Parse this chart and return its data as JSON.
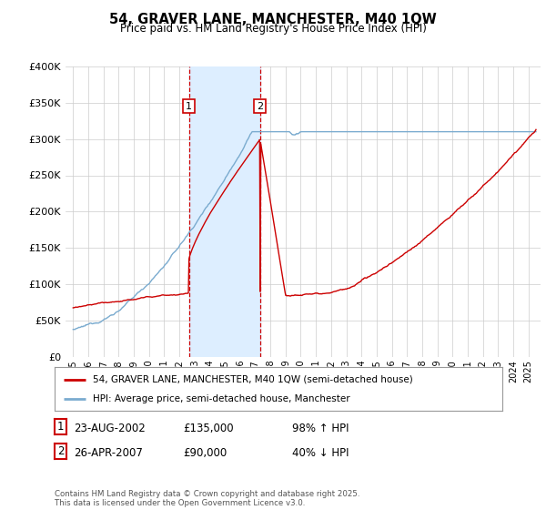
{
  "title": "54, GRAVER LANE, MANCHESTER, M40 1QW",
  "subtitle": "Price paid vs. HM Land Registry's House Price Index (HPI)",
  "legend_line1": "54, GRAVER LANE, MANCHESTER, M40 1QW (semi-detached house)",
  "legend_line2": "HPI: Average price, semi-detached house, Manchester",
  "footnote": "Contains HM Land Registry data © Crown copyright and database right 2025.\nThis data is licensed under the Open Government Licence v3.0.",
  "transaction1_label": "1",
  "transaction1_date": "23-AUG-2002",
  "transaction1_price": "£135,000",
  "transaction1_hpi": "98% ↑ HPI",
  "transaction2_label": "2",
  "transaction2_date": "26-APR-2007",
  "transaction2_price": "£90,000",
  "transaction2_hpi": "40% ↓ HPI",
  "t1_year": 2002.64,
  "t2_year": 2007.32,
  "ylim": [
    0,
    400000
  ],
  "xlim_start": 1994.5,
  "xlim_end": 2025.8,
  "red_line_color": "#cc0000",
  "blue_line_color": "#7aabcf",
  "shade_color": "#ddeeff",
  "grid_color": "#cccccc",
  "bg_color": "#ffffff"
}
